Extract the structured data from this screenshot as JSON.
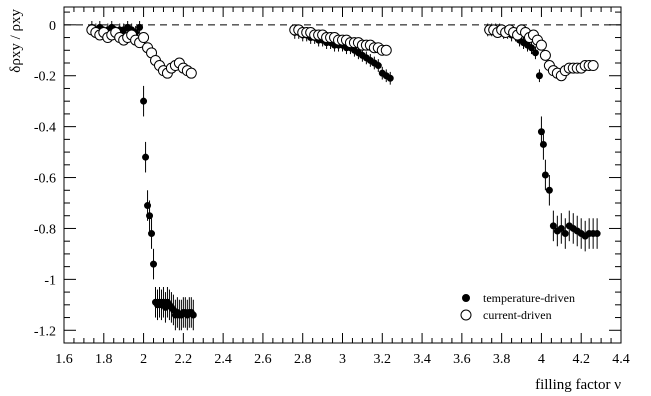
{
  "chart_data": {
    "type": "scatter",
    "xlabel": "filling factor  ν",
    "ylabel": "δρxy / ρxy",
    "xlim": [
      1.6,
      4.4
    ],
    "ylim": [
      -1.25,
      0.07
    ],
    "x_ticks": [
      1.6,
      1.8,
      2.0,
      2.2,
      2.4,
      2.6,
      2.8,
      3.0,
      3.2,
      3.4,
      3.6,
      3.8,
      4.0,
      4.2,
      4.4
    ],
    "x_tick_labels": [
      "1.6",
      "1.8",
      "2",
      "2.2",
      "2.4",
      "2.6",
      "2.8",
      "3",
      "3.2",
      "3.4",
      "3.6",
      "3.8",
      "4",
      "4.2",
      "4.4"
    ],
    "y_ticks": [
      0,
      -0.2,
      -0.4,
      -0.6,
      -0.8,
      -1.0,
      -1.2
    ],
    "y_tick_labels": [
      "0",
      "-0.2",
      "-0.4",
      "-0.6",
      "-0.8",
      "-1",
      "-1.2"
    ],
    "reference_line": {
      "y": 0,
      "style": "dashed"
    },
    "grid": false,
    "legend_position": "bottom-right",
    "series": [
      {
        "name": "temperature-driven",
        "marker": "filled-circle",
        "color": "#000000",
        "x": [
          1.74,
          1.76,
          1.78,
          1.8,
          1.82,
          1.84,
          1.86,
          1.88,
          1.9,
          1.92,
          1.94,
          1.96,
          1.98,
          2.0,
          2.01,
          2.02,
          2.03,
          2.04,
          2.05,
          2.06,
          2.07,
          2.08,
          2.09,
          2.1,
          2.11,
          2.12,
          2.13,
          2.14,
          2.15,
          2.16,
          2.17,
          2.18,
          2.19,
          2.2,
          2.21,
          2.22,
          2.23,
          2.24,
          2.25,
          2.76,
          2.78,
          2.8,
          2.82,
          2.84,
          2.86,
          2.88,
          2.9,
          2.92,
          2.94,
          2.96,
          2.98,
          3.0,
          3.02,
          3.04,
          3.06,
          3.08,
          3.1,
          3.12,
          3.14,
          3.16,
          3.18,
          3.2,
          3.22,
          3.24,
          3.73,
          3.75,
          3.77,
          3.79,
          3.81,
          3.83,
          3.85,
          3.87,
          3.89,
          3.91,
          3.93,
          3.95,
          3.97,
          3.99,
          4.0,
          4.01,
          4.02,
          4.04,
          4.06,
          4.08,
          4.1,
          4.12,
          4.14,
          4.16,
          4.18,
          4.2,
          4.22,
          4.24,
          4.26,
          4.28
        ],
        "y": [
          -0.01,
          -0.02,
          -0.01,
          -0.03,
          -0.02,
          -0.01,
          -0.03,
          -0.02,
          -0.02,
          -0.01,
          -0.02,
          -0.03,
          -0.01,
          -0.3,
          -0.52,
          -0.71,
          -0.75,
          -0.82,
          -0.94,
          -1.09,
          -1.1,
          -1.09,
          -1.1,
          -1.09,
          -1.11,
          -1.09,
          -1.1,
          -1.11,
          -1.12,
          -1.14,
          -1.13,
          -1.14,
          -1.14,
          -1.13,
          -1.13,
          -1.14,
          -1.13,
          -1.13,
          -1.14,
          -0.03,
          -0.03,
          -0.04,
          -0.04,
          -0.05,
          -0.05,
          -0.06,
          -0.06,
          -0.07,
          -0.07,
          -0.08,
          -0.08,
          -0.08,
          -0.09,
          -0.09,
          -0.1,
          -0.11,
          -0.12,
          -0.13,
          -0.14,
          -0.15,
          -0.16,
          -0.19,
          -0.2,
          -0.21,
          -0.02,
          -0.02,
          -0.02,
          -0.02,
          -0.03,
          -0.03,
          -0.04,
          -0.04,
          -0.06,
          -0.07,
          -0.08,
          -0.09,
          -0.11,
          -0.2,
          -0.42,
          -0.47,
          -0.59,
          -0.65,
          -0.79,
          -0.81,
          -0.8,
          -0.82,
          -0.79,
          -0.8,
          -0.81,
          -0.82,
          -0.83,
          -0.82,
          -0.82,
          -0.82
        ]
      },
      {
        "name": "current-driven",
        "marker": "open-circle",
        "color": "#000000",
        "x": [
          1.74,
          1.76,
          1.78,
          1.8,
          1.82,
          1.84,
          1.86,
          1.88,
          1.9,
          1.92,
          1.94,
          1.96,
          1.98,
          2.0,
          2.02,
          2.04,
          2.06,
          2.08,
          2.1,
          2.12,
          2.14,
          2.16,
          2.18,
          2.2,
          2.22,
          2.24,
          2.76,
          2.78,
          2.8,
          2.82,
          2.84,
          2.86,
          2.88,
          2.9,
          2.92,
          2.94,
          2.96,
          2.98,
          3.0,
          3.02,
          3.04,
          3.06,
          3.08,
          3.1,
          3.12,
          3.14,
          3.16,
          3.18,
          3.2,
          3.22,
          3.74,
          3.76,
          3.78,
          3.8,
          3.82,
          3.84,
          3.86,
          3.88,
          3.9,
          3.92,
          3.94,
          3.96,
          3.98,
          4.0,
          4.02,
          4.04,
          4.06,
          4.08,
          4.1,
          4.12,
          4.14,
          4.16,
          4.18,
          4.2,
          4.22,
          4.24,
          4.26
        ],
        "y": [
          -0.02,
          -0.03,
          -0.04,
          -0.03,
          -0.05,
          -0.04,
          -0.03,
          -0.05,
          -0.06,
          -0.05,
          -0.04,
          -0.06,
          -0.07,
          -0.05,
          -0.09,
          -0.11,
          -0.14,
          -0.16,
          -0.18,
          -0.19,
          -0.17,
          -0.16,
          -0.15,
          -0.17,
          -0.18,
          -0.19,
          -0.02,
          -0.02,
          -0.03,
          -0.03,
          -0.03,
          -0.04,
          -0.04,
          -0.04,
          -0.05,
          -0.05,
          -0.05,
          -0.06,
          -0.06,
          -0.06,
          -0.07,
          -0.07,
          -0.07,
          -0.08,
          -0.08,
          -0.08,
          -0.09,
          -0.09,
          -0.1,
          -0.1,
          -0.02,
          -0.02,
          -0.03,
          -0.02,
          -0.03,
          -0.02,
          -0.03,
          -0.04,
          -0.02,
          -0.03,
          -0.05,
          -0.04,
          -0.06,
          -0.08,
          -0.12,
          -0.16,
          -0.18,
          -0.19,
          -0.2,
          -0.18,
          -0.17,
          -0.17,
          -0.17,
          -0.17,
          -0.16,
          -0.16,
          -0.16
        ]
      }
    ]
  }
}
